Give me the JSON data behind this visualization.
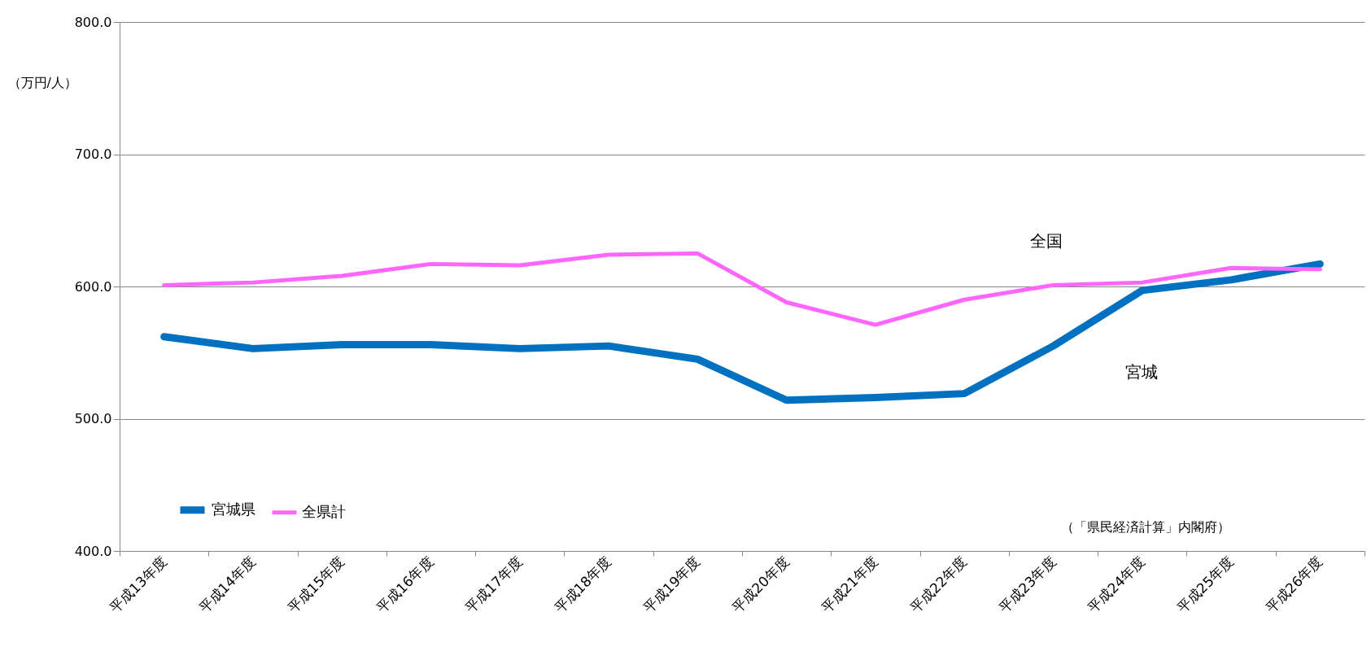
{
  "chart_data": {
    "type": "line",
    "ylabel": "（万円/人）",
    "categories": [
      "平成13年度",
      "平成14年度",
      "平成15年度",
      "平成16年度",
      "平成17年度",
      "平成18年度",
      "平成19年度",
      "平成20年度",
      "平成21年度",
      "平成22年度",
      "平成23年度",
      "平成24年度",
      "平成25年度",
      "平成26年度"
    ],
    "series": [
      {
        "name": "宮城県",
        "color": "#0070c0",
        "values": [
          562,
          553,
          556,
          556,
          553,
          555,
          545,
          514,
          516,
          519,
          555,
          597,
          605,
          617
        ]
      },
      {
        "name": "全県計",
        "color": "#ff66ff",
        "values": [
          601,
          603,
          608,
          617,
          616,
          624,
          625,
          588,
          571,
          590,
          601,
          603,
          614,
          613
        ]
      }
    ],
    "ylim": [
      400,
      800
    ],
    "yticks": [
      {
        "value": 400,
        "label": "400.0"
      },
      {
        "value": 500,
        "label": "500.0"
      },
      {
        "value": 600,
        "label": "600.0"
      },
      {
        "value": 700,
        "label": "700.0"
      },
      {
        "value": 800,
        "label": "800.0"
      }
    ],
    "grid": "y",
    "legend": "bottom left",
    "marker": "none",
    "line_style": "solid",
    "annotations": [
      "全国",
      "宮城",
      "（「県民経済計算」内閣府）"
    ]
  }
}
